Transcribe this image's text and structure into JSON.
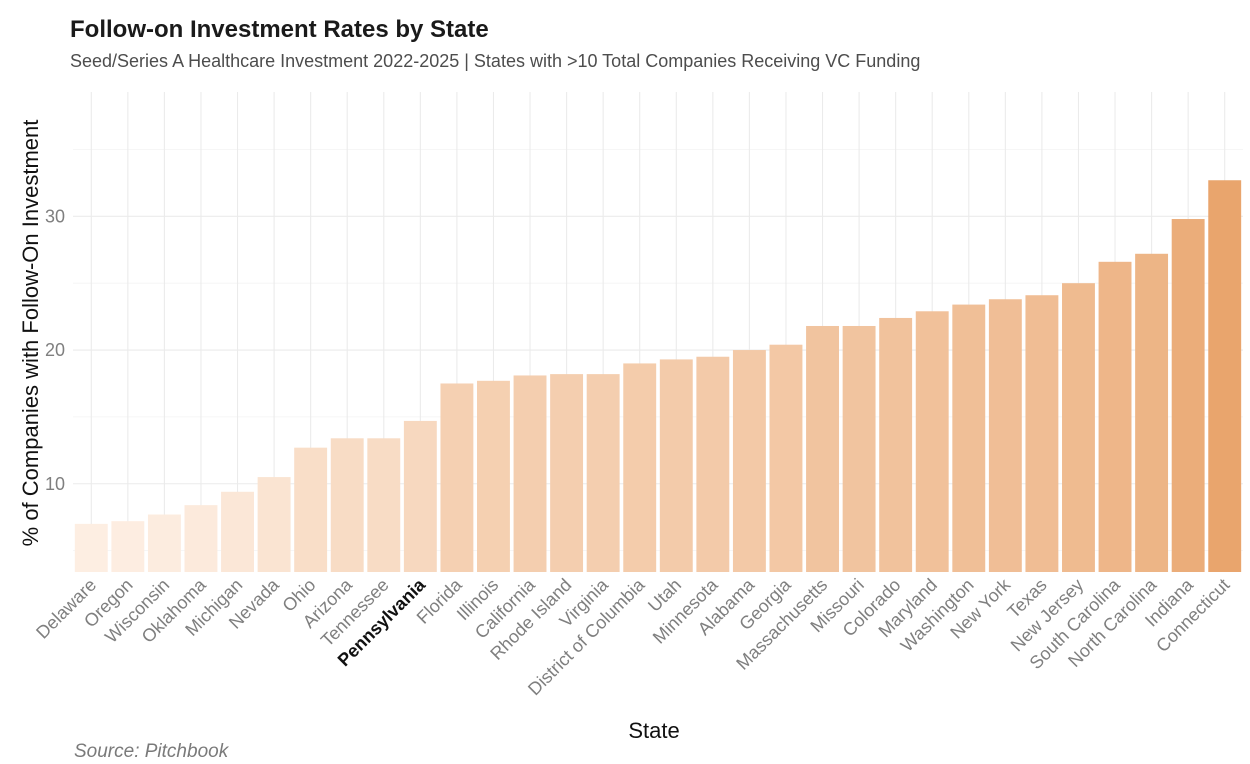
{
  "chart_data": {
    "type": "bar",
    "title": "Follow-on Investment Rates by State",
    "subtitle": "Seed/Series A Healthcare Investment 2022-2025 | States with >10 Total Companies Receiving VC Funding",
    "xlabel": "State",
    "ylabel": "% of Companies with Follow-On Investment",
    "caption": "Source: Pitchbook",
    "ylim": [
      3.4,
      39.3
    ],
    "yticks": [
      10,
      20,
      30
    ],
    "ygrid_minor": [
      5,
      15,
      25,
      35
    ],
    "grid": true,
    "legend": "none",
    "highlighted_category": "Pennsylvania",
    "color_low": "#fdeee2",
    "color_high": "#e9a56d",
    "categories": [
      "Delaware",
      "Oregon",
      "Wisconsin",
      "Oklahoma",
      "Michigan",
      "Nevada",
      "Ohio",
      "Arizona",
      "Tennessee",
      "Pennsylvania",
      "Florida",
      "Illinois",
      "California",
      "Rhode Island",
      "Virginia",
      "District of Columbia",
      "Utah",
      "Minnesota",
      "Alabama",
      "Georgia",
      "Massachusetts",
      "Missouri",
      "Colorado",
      "Maryland",
      "Washington",
      "New York",
      "Texas",
      "New Jersey",
      "South Carolina",
      "North Carolina",
      "Indiana",
      "Connecticut"
    ],
    "values": [
      7.0,
      7.2,
      7.7,
      8.4,
      9.4,
      10.5,
      12.7,
      13.4,
      13.4,
      14.7,
      17.5,
      17.7,
      18.1,
      18.2,
      18.2,
      19.0,
      19.3,
      19.5,
      20.0,
      20.4,
      21.8,
      21.8,
      22.4,
      22.9,
      23.4,
      23.8,
      24.1,
      25.0,
      26.6,
      27.2,
      29.8,
      32.7
    ]
  }
}
